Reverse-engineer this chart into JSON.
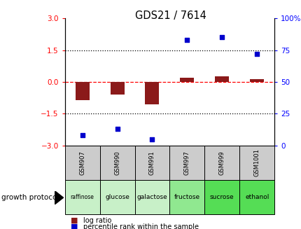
{
  "title": "GDS21 / 7614",
  "samples": [
    "GSM907",
    "GSM990",
    "GSM991",
    "GSM997",
    "GSM999",
    "GSM1001"
  ],
  "protocols": [
    "raffinose",
    "glucose",
    "galactose",
    "fructose",
    "sucrose",
    "ethanol"
  ],
  "log_ratio": [
    -0.85,
    -0.6,
    -1.05,
    0.2,
    0.25,
    0.13
  ],
  "percentile_rank": [
    8,
    13,
    5,
    83,
    85,
    72
  ],
  "ylim_left": [
    -3,
    3
  ],
  "ylim_right": [
    0,
    100
  ],
  "yticks_left": [
    -3,
    -1.5,
    0,
    1.5,
    3
  ],
  "yticks_right": [
    0,
    25,
    50,
    75,
    100
  ],
  "bar_color": "#8B1A1A",
  "dot_color": "#0000CC",
  "sample_bg_color": "#CCCCCC",
  "proto_colors": [
    "#C8F0C8",
    "#C8F0C8",
    "#C8F0C8",
    "#90E890",
    "#55DD55",
    "#55DD55"
  ],
  "legend_red_label": "log ratio",
  "legend_blue_label": "percentile rank within the sample",
  "growth_protocol_label": "growth protocol"
}
